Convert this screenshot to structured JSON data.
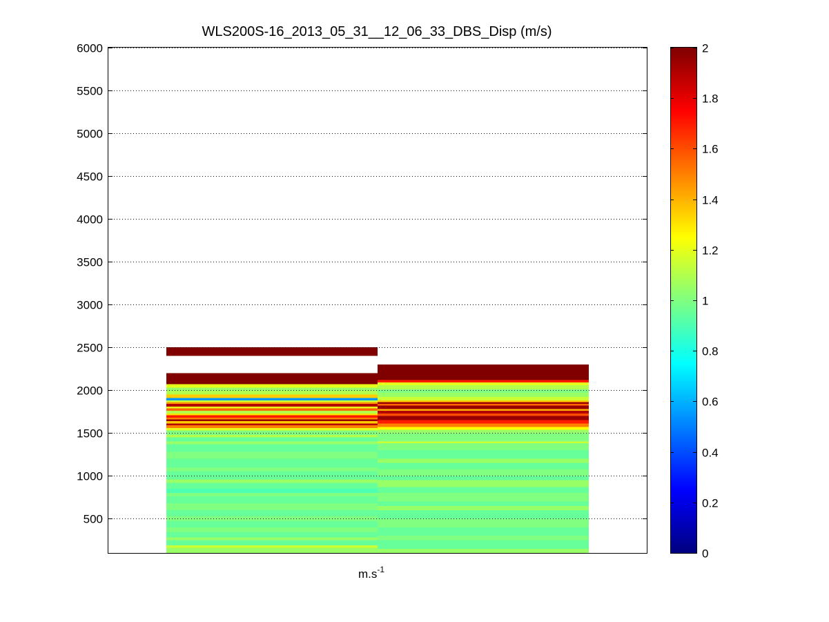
{
  "chart_data": {
    "type": "heatmap",
    "title": "WLS200S-16_2013_05_31__12_06_33_DBS_Disp (m/s)",
    "xlabel_base": "m.s",
    "xlabel_exp": "-1",
    "ylabel": "",
    "ylim": [
      100,
      6000
    ],
    "yticks": [
      500,
      1000,
      1500,
      2000,
      2500,
      3000,
      3500,
      4000,
      4500,
      5000,
      5500,
      6000
    ],
    "grid": "horizontal dotted",
    "colormap": "jet",
    "clim": [
      0,
      2
    ],
    "colorbar_ticks": [
      0,
      0.2,
      0.4,
      0.6,
      0.8,
      1,
      1.2,
      1.4,
      1.6,
      1.8,
      2
    ],
    "columns": [
      {
        "x_range": [
          0,
          1
        ],
        "cells": [
          [
            100,
            160,
            1.05
          ],
          [
            160,
            190,
            1.15
          ],
          [
            190,
            250,
            0.95
          ],
          [
            250,
            280,
            1.05
          ],
          [
            280,
            340,
            0.95
          ],
          [
            340,
            400,
            1.0
          ],
          [
            400,
            470,
            0.95
          ],
          [
            470,
            530,
            1.0
          ],
          [
            530,
            600,
            0.95
          ],
          [
            600,
            680,
            1.0
          ],
          [
            680,
            760,
            0.95
          ],
          [
            760,
            800,
            1.0
          ],
          [
            800,
            850,
            0.9
          ],
          [
            850,
            920,
            0.95
          ],
          [
            920,
            960,
            1.05
          ],
          [
            960,
            1050,
            0.95
          ],
          [
            1050,
            1100,
            1.0
          ],
          [
            1100,
            1200,
            0.95
          ],
          [
            1200,
            1280,
            1.0
          ],
          [
            1280,
            1370,
            0.95
          ],
          [
            1370,
            1400,
            1.05
          ],
          [
            1400,
            1450,
            0.95
          ],
          [
            1450,
            1480,
            1.1
          ],
          [
            1480,
            1530,
            1.0
          ],
          [
            1530,
            1560,
            1.2
          ],
          [
            1560,
            1590,
            1.5
          ],
          [
            1590,
            1610,
            1.9
          ],
          [
            1610,
            1640,
            1.35
          ],
          [
            1640,
            1660,
            1.95
          ],
          [
            1660,
            1680,
            1.5
          ],
          [
            1680,
            1710,
            1.7
          ],
          [
            1710,
            1730,
            1.3
          ],
          [
            1730,
            1760,
            1.1
          ],
          [
            1760,
            1790,
            1.55
          ],
          [
            1790,
            1810,
            1.2
          ],
          [
            1810,
            1840,
            1.9
          ],
          [
            1840,
            1860,
            1.45
          ],
          [
            1860,
            1880,
            1.15
          ],
          [
            1880,
            1910,
            0.55
          ],
          [
            1910,
            1950,
            1.35
          ],
          [
            1950,
            1990,
            1.1
          ],
          [
            1990,
            2030,
            1.05
          ],
          [
            2030,
            2070,
            1.2
          ],
          [
            2070,
            2200,
            2.0
          ],
          [
            2400,
            2500,
            2.0
          ]
        ]
      },
      {
        "x_range": [
          1,
          2
        ],
        "cells": [
          [
            100,
            150,
            1.05
          ],
          [
            150,
            250,
            0.95
          ],
          [
            250,
            300,
            1.0
          ],
          [
            300,
            400,
            0.95
          ],
          [
            400,
            500,
            1.0
          ],
          [
            500,
            600,
            0.95
          ],
          [
            600,
            650,
            1.05
          ],
          [
            650,
            700,
            0.95
          ],
          [
            700,
            800,
            1.0
          ],
          [
            800,
            870,
            0.95
          ],
          [
            870,
            950,
            1.05
          ],
          [
            950,
            1000,
            0.95
          ],
          [
            1000,
            1080,
            1.0
          ],
          [
            1080,
            1150,
            0.95
          ],
          [
            1150,
            1200,
            1.05
          ],
          [
            1200,
            1300,
            0.95
          ],
          [
            1300,
            1380,
            1.0
          ],
          [
            1380,
            1400,
            1.15
          ],
          [
            1400,
            1500,
            1.0
          ],
          [
            1500,
            1540,
            1.05
          ],
          [
            1540,
            1570,
            1.25
          ],
          [
            1570,
            1610,
            1.5
          ],
          [
            1610,
            1650,
            1.7
          ],
          [
            1650,
            1700,
            1.95
          ],
          [
            1700,
            1730,
            1.6
          ],
          [
            1730,
            1760,
            1.9
          ],
          [
            1760,
            1780,
            1.4
          ],
          [
            1780,
            1820,
            1.95
          ],
          [
            1820,
            1840,
            1.55
          ],
          [
            1840,
            1860,
            1.95
          ],
          [
            1860,
            1880,
            1.35
          ],
          [
            1880,
            1920,
            1.15
          ],
          [
            1920,
            1970,
            1.05
          ],
          [
            1970,
            2010,
            1.0
          ],
          [
            2010,
            2060,
            1.1
          ],
          [
            2060,
            2090,
            1.2
          ],
          [
            2090,
            2120,
            1.7
          ],
          [
            2120,
            2300,
            2.0
          ]
        ]
      }
    ]
  }
}
